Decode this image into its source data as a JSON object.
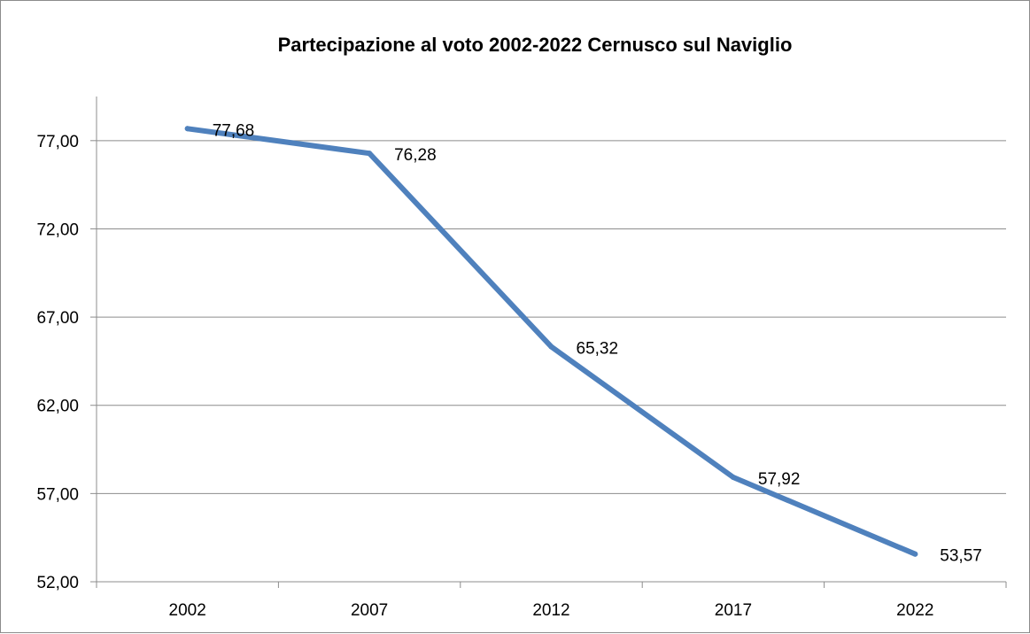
{
  "chart_data": {
    "type": "line",
    "title": "Partecipazione al voto 2002-2022 Cernusco sul Naviglio",
    "xlabel": "",
    "ylabel": "",
    "categories": [
      "2002",
      "2007",
      "2012",
      "2017",
      "2022"
    ],
    "series": [
      {
        "values": [
          77.68,
          76.28,
          65.32,
          57.92,
          53.57
        ],
        "labels": [
          "77,68",
          "76,28",
          "65,32",
          "57,92",
          "53,57"
        ],
        "color": "#4f81bd"
      }
    ],
    "yticks": [
      "52,00",
      "57,00",
      "62,00",
      "67,00",
      "72,00",
      "77,00"
    ],
    "ylim": [
      52,
      79.5
    ],
    "grid": true,
    "legend": "none"
  }
}
